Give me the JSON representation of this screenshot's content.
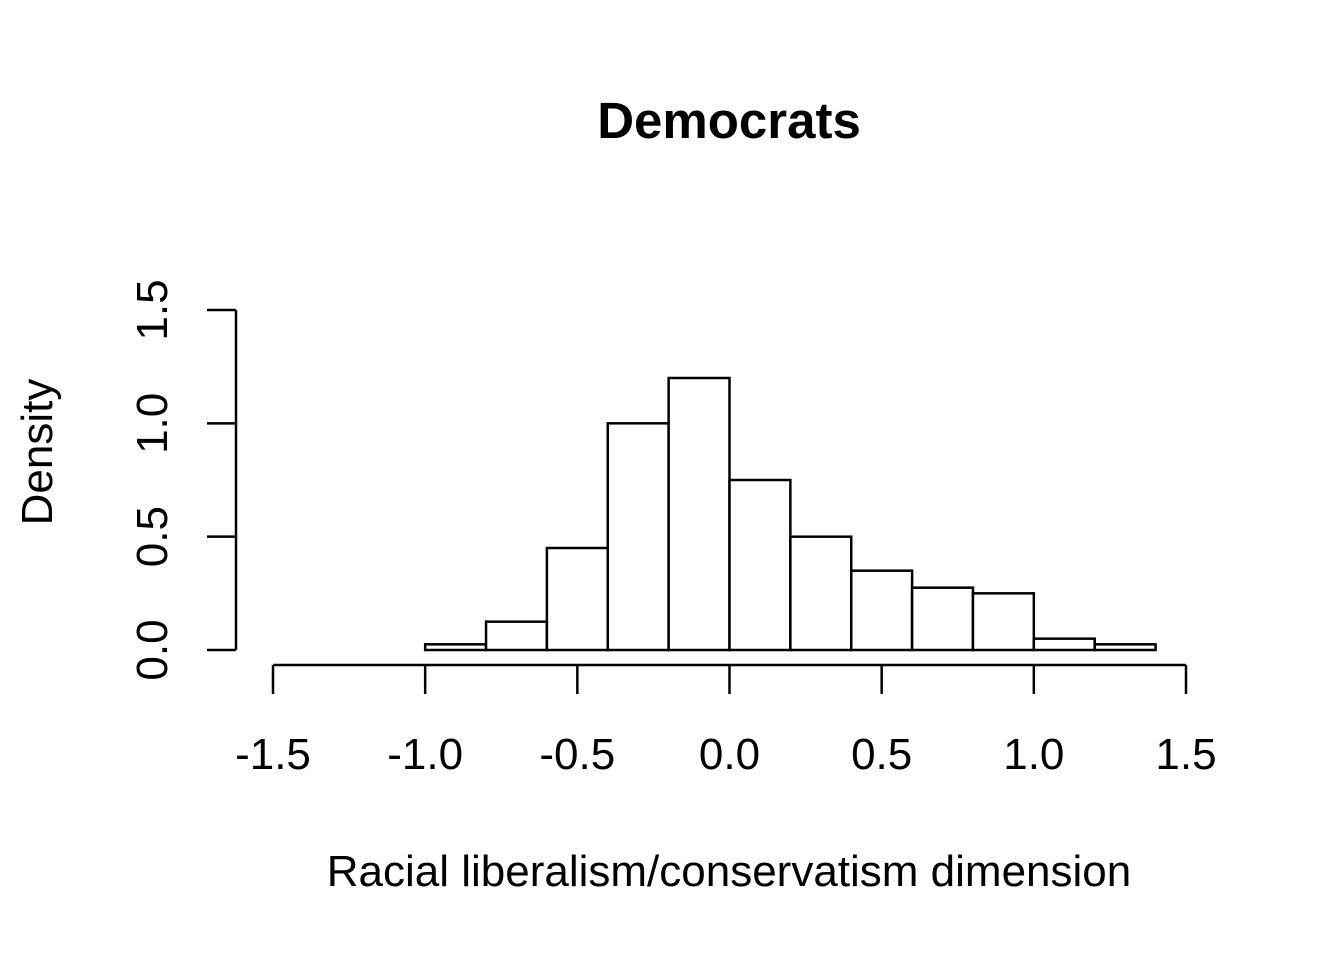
{
  "chart_data": {
    "type": "bar",
    "title": "Democrats",
    "xlabel": "Racial liberalism/conservatism dimension",
    "ylabel": "Density",
    "xlim": [
      -1.5,
      1.5
    ],
    "ylim": [
      0,
      1.5
    ],
    "x_ticks": [
      "-1.5",
      "-1.0",
      "-0.5",
      "0.0",
      "0.5",
      "1.0",
      "1.5"
    ],
    "y_ticks": [
      "0.0",
      "0.5",
      "1.0",
      "1.5"
    ],
    "bin_width": 0.2,
    "bins": [
      {
        "start": -1.0,
        "end": -0.8,
        "density": 0.025
      },
      {
        "start": -0.8,
        "end": -0.6,
        "density": 0.125
      },
      {
        "start": -0.6,
        "end": -0.4,
        "density": 0.45
      },
      {
        "start": -0.4,
        "end": -0.2,
        "density": 1.0
      },
      {
        "start": -0.2,
        "end": 0.0,
        "density": 1.2
      },
      {
        "start": 0.0,
        "end": 0.2,
        "density": 0.75
      },
      {
        "start": 0.2,
        "end": 0.4,
        "density": 0.5
      },
      {
        "start": 0.4,
        "end": 0.6,
        "density": 0.35
      },
      {
        "start": 0.6,
        "end": 0.8,
        "density": 0.275
      },
      {
        "start": 0.8,
        "end": 1.0,
        "density": 0.25
      },
      {
        "start": 1.0,
        "end": 1.2,
        "density": 0.05
      },
      {
        "start": 1.2,
        "end": 1.4,
        "density": 0.025
      }
    ],
    "grid": false,
    "legend": "none"
  }
}
